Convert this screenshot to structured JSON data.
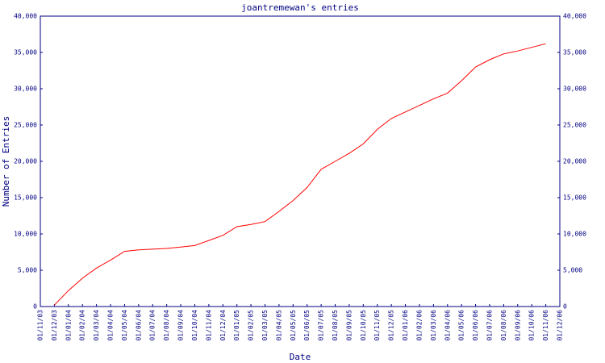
{
  "chart_data": {
    "type": "line",
    "title": "joantremewan's entries",
    "y_label": "Number of Entries",
    "x_label": "Date",
    "categories": [
      "01/11/03",
      "01/12/03",
      "01/01/04",
      "01/02/04",
      "01/03/04",
      "01/04/04",
      "01/05/04",
      "01/06/04",
      "01/07/04",
      "01/08/04",
      "01/09/04",
      "01/10/04",
      "01/11/04",
      "01/12/04",
      "01/01/05",
      "01/02/05",
      "01/03/05",
      "01/04/05",
      "01/05/05",
      "01/06/05",
      "01/07/05",
      "01/08/05",
      "01/09/05",
      "01/10/05",
      "01/11/05",
      "01/12/05",
      "01/01/06",
      "01/02/06",
      "01/03/06",
      "01/04/06",
      "01/05/06",
      "01/06/06",
      "01/07/06",
      "01/08/06",
      "01/09/06",
      "01/10/06",
      "01/11/06",
      "01/12/06"
    ],
    "series": [
      {
        "name": "entries",
        "color": "#ff0000",
        "values": [
          null,
          200,
          2200,
          3900,
          5300,
          6400,
          7600,
          7800,
          7900,
          8000,
          8200,
          8400,
          9100,
          9800,
          11000,
          11300,
          11700,
          13100,
          14600,
          16400,
          18900,
          20000,
          21100,
          22400,
          24400,
          25900,
          26800,
          27700,
          28600,
          29400,
          31100,
          33000,
          34000,
          34800,
          35200,
          35700,
          36200,
          null
        ]
      }
    ],
    "ylim": [
      0,
      40000
    ],
    "yticks": [
      0,
      {
        "value": 5000,
        "label": "5,000"
      },
      {
        "value": 10000,
        "label": "10,000"
      },
      {
        "value": 15000,
        "label": "15,000"
      },
      {
        "value": 20000,
        "label": "20,000"
      },
      {
        "value": 25000,
        "label": "25,000"
      },
      {
        "value": 30000,
        "label": "30,000"
      },
      {
        "value": 35000,
        "label": "35,000"
      },
      {
        "value": 40000,
        "label": "40,000"
      }
    ],
    "y2lim": [
      0,
      40000
    ],
    "y2ticks": [
      0,
      {
        "value": 5000,
        "label": "5,000"
      },
      {
        "value": 10000,
        "label": "10,000"
      },
      {
        "value": 15000,
        "label": "15,000"
      },
      {
        "value": 20000,
        "label": "20,000"
      },
      {
        "value": 25000,
        "label": "25,000"
      },
      {
        "value": 30000,
        "label": "30,000"
      },
      {
        "value": 35000,
        "label": "35,000"
      },
      {
        "value": 40000,
        "label": "40,000"
      }
    ]
  }
}
